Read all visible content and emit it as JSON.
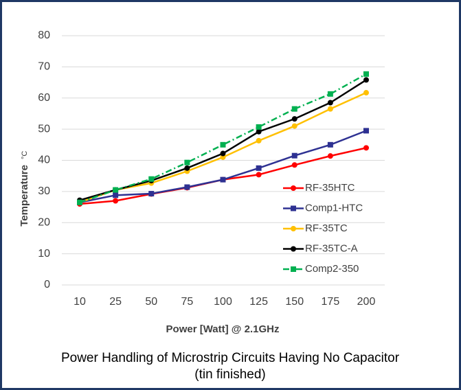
{
  "chart_data": {
    "type": "line",
    "xlabel": "Power [Watt] @ 2.1GHz",
    "ylabel": "Temperature",
    "yunit": "°C",
    "caption": [
      "Power Handling of Microstrip Circuits Having No Capacitor",
      "(tin finished)"
    ],
    "categories": [
      "10",
      "25",
      "50",
      "75",
      "100",
      "125",
      "150",
      "175",
      "200"
    ],
    "ylim": [
      0,
      80
    ],
    "yticks": [
      0,
      10,
      20,
      30,
      40,
      50,
      60,
      70,
      80
    ],
    "grid": true,
    "legend": "right",
    "series": [
      {
        "name": "RF-35HTC",
        "color": "#ff0000",
        "marker": "circle",
        "dash": "solid",
        "values": [
          26,
          27,
          29.2,
          31.2,
          33.8,
          35.4,
          38.5,
          41.4,
          44
        ]
      },
      {
        "name": "Comp1-HTC",
        "color": "#2e3192",
        "marker": "square",
        "dash": "solid",
        "values": [
          26.5,
          28.8,
          29.3,
          31.4,
          33.8,
          37.5,
          41.5,
          45,
          49.5
        ]
      },
      {
        "name": "RF-35TC",
        "color": "#ffc000",
        "marker": "circle",
        "dash": "solid",
        "values": [
          26.5,
          30.5,
          32.7,
          36.5,
          41,
          46.3,
          51,
          56.5,
          61.7
        ]
      },
      {
        "name": "RF-35TC-A",
        "color": "#000000",
        "marker": "circle",
        "dash": "solid",
        "values": [
          27.2,
          30.5,
          33.5,
          37.5,
          42.2,
          49.2,
          53.3,
          58.5,
          65.8
        ]
      },
      {
        "name": "Comp2-350",
        "color": "#00b050",
        "marker": "square",
        "dash": "dashdot",
        "values": [
          26.5,
          30.5,
          34,
          39.3,
          45,
          50.7,
          56.5,
          61.3,
          67.7
        ]
      }
    ]
  }
}
